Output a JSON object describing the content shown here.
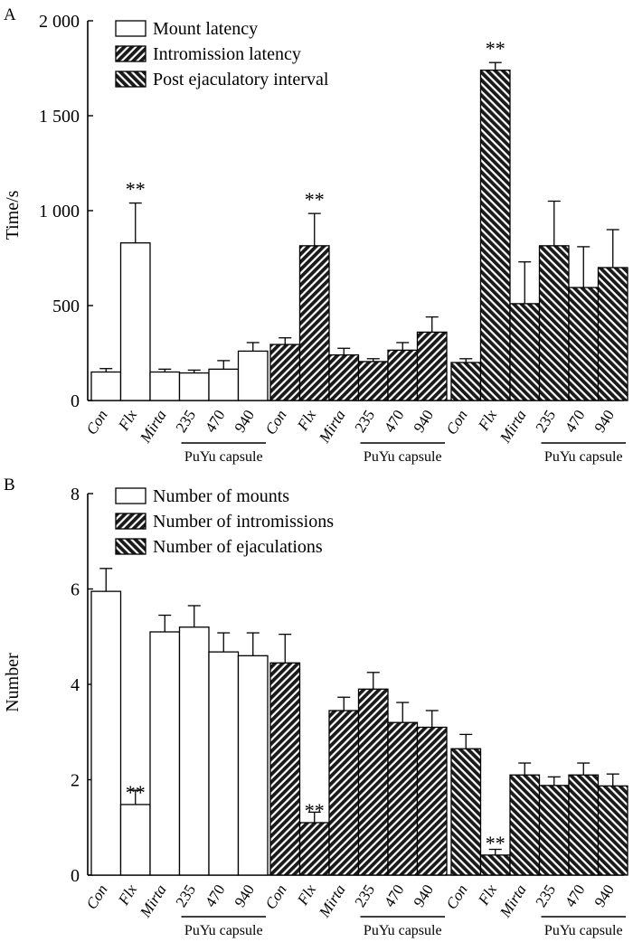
{
  "chart_data": [
    {
      "panel": "A",
      "type": "bar",
      "ylabel": "Time/s",
      "ylim": [
        0,
        2000
      ],
      "yticks": [
        0,
        500,
        1000,
        1500,
        2000
      ],
      "ytick_labels": [
        "0",
        "500",
        "1 000",
        "1 500",
        "2 000"
      ],
      "categories": [
        "Con",
        "Flx",
        "Mirta",
        "235",
        "470",
        "940"
      ],
      "group_label": "PuYu capsule",
      "legend_position": "top-left",
      "series": [
        {
          "name": "Mount latency",
          "pattern": "white",
          "values": [
            150,
            830,
            150,
            145,
            165,
            260
          ],
          "errors": [
            18,
            210,
            15,
            15,
            45,
            45
          ],
          "stars": [
            "",
            "**",
            "",
            "",
            "",
            ""
          ]
        },
        {
          "name": "Intromission latency",
          "pattern": "fwd",
          "values": [
            295,
            815,
            240,
            205,
            265,
            360
          ],
          "errors": [
            35,
            170,
            35,
            15,
            40,
            80
          ],
          "stars": [
            "",
            "**",
            "",
            "",
            "",
            ""
          ]
        },
        {
          "name": "Post ejaculatory interval",
          "pattern": "back",
          "values": [
            200,
            1740,
            510,
            815,
            595,
            700
          ],
          "errors": [
            20,
            40,
            220,
            235,
            215,
            200
          ],
          "stars": [
            "",
            "**",
            "",
            "",
            "",
            ""
          ]
        }
      ]
    },
    {
      "panel": "B",
      "type": "bar",
      "ylabel": "Number",
      "ylim": [
        0,
        8
      ],
      "yticks": [
        0,
        2,
        4,
        6,
        8
      ],
      "ytick_labels": [
        "0",
        "2",
        "4",
        "6",
        "8"
      ],
      "categories": [
        "Con",
        "Flx",
        "Mirta",
        "235",
        "470",
        "940"
      ],
      "group_label": "PuYu capsule",
      "legend_position": "top-left",
      "series": [
        {
          "name": "Number of mounts",
          "pattern": "white",
          "values": [
            5.95,
            1.48,
            5.1,
            5.2,
            4.68,
            4.6
          ],
          "errors": [
            0.48,
            0.3,
            0.35,
            0.45,
            0.4,
            0.48
          ],
          "stars": [
            "",
            "**",
            "",
            "",
            "",
            ""
          ]
        },
        {
          "name": "Number of intromissions",
          "pattern": "fwd",
          "values": [
            4.45,
            1.1,
            3.45,
            3.9,
            3.2,
            3.1
          ],
          "errors": [
            0.6,
            0.22,
            0.28,
            0.35,
            0.42,
            0.35
          ],
          "stars": [
            "",
            "**",
            "",
            "",
            "",
            ""
          ]
        },
        {
          "name": "Number of ejaculations",
          "pattern": "back",
          "values": [
            2.65,
            0.42,
            2.1,
            1.88,
            2.1,
            1.87
          ],
          "errors": [
            0.3,
            0.12,
            0.25,
            0.18,
            0.25,
            0.25
          ],
          "stars": [
            "",
            "**",
            "",
            "",
            "",
            ""
          ]
        }
      ]
    }
  ]
}
